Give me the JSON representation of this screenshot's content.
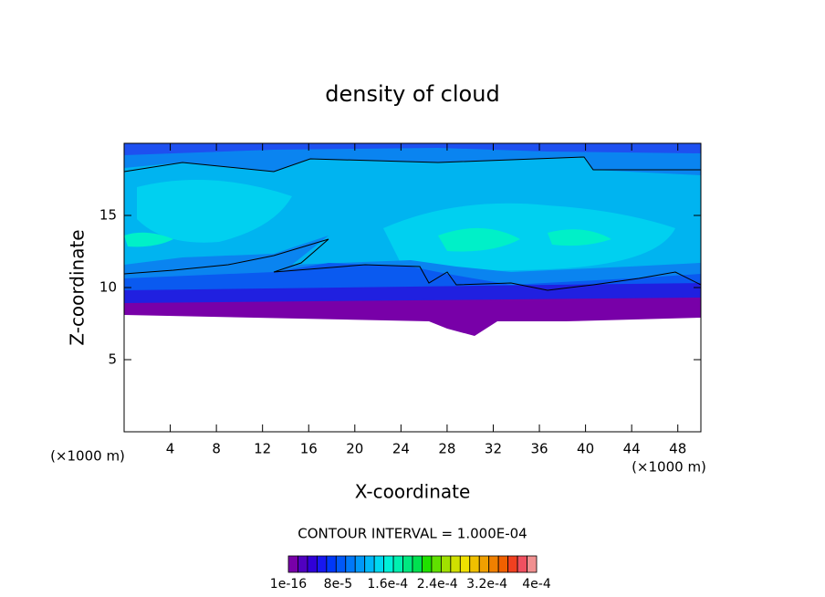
{
  "chart_data": {
    "type": "contour",
    "title": "density of cloud",
    "xlabel": "X-coordinate",
    "ylabel": "Z-coordinate",
    "x_unit": "(×1000 m)",
    "y_unit": "(×1000 m)",
    "xlim": [
      0,
      50
    ],
    "xticks": [
      4,
      8,
      12,
      16,
      20,
      24,
      28,
      32,
      36,
      40,
      44,
      48
    ],
    "ylim": [
      0,
      20
    ],
    "yticks": [
      5,
      10,
      15
    ],
    "contour_interval": "CONTOUR INTERVAL = 1.000E-04",
    "colorbar": {
      "lim": [
        0,
        0.0004
      ],
      "ticks": [
        {
          "value": 1e-16,
          "label": "1e-16"
        },
        {
          "value": 8e-05,
          "label": "8e-5"
        },
        {
          "value": 0.00016,
          "label": "1.6e-4"
        },
        {
          "value": 0.00024,
          "label": "2.4e-4"
        },
        {
          "value": 0.00032,
          "label": "3.2e-4"
        },
        {
          "value": 0.0004,
          "label": "4e-4"
        }
      ],
      "colors": [
        "#7800a8",
        "#5000c0",
        "#3000d8",
        "#1818f0",
        "#0038f8",
        "#0058f8",
        "#0078f8",
        "#0098f8",
        "#00b8f8",
        "#00d8f0",
        "#00f0d8",
        "#00f0b0",
        "#00e880",
        "#00e050",
        "#20e000",
        "#60e000",
        "#a0e000",
        "#d0e000",
        "#f0e000",
        "#f0c000",
        "#f0a000",
        "#f08000",
        "#f06000",
        "#f04020",
        "#f05060",
        "#f09090"
      ]
    }
  }
}
